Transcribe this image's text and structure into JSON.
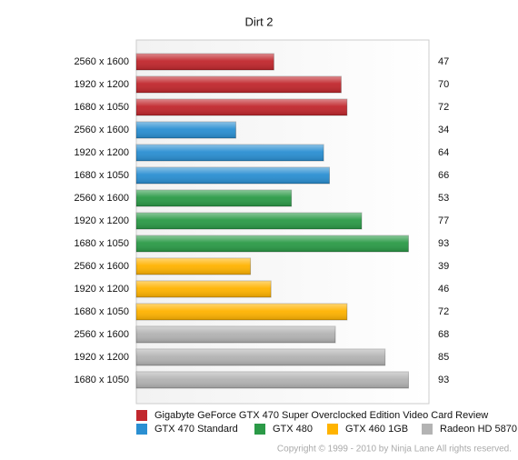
{
  "chart_data": {
    "type": "bar",
    "orientation": "horizontal",
    "title": "Dirt 2",
    "categories": [
      "2560 x 1600",
      "1920 x 1200",
      "1680 x 1050",
      "2560 x 1600",
      "1920 x 1200",
      "1680 x 1050",
      "2560 x 1600",
      "1920 x 1200",
      "1680 x 1050",
      "2560 x 1600",
      "1920 x 1200",
      "1680 x 1050",
      "2560 x 1600",
      "1920 x 1200",
      "1680 x 1050"
    ],
    "series": [
      {
        "name": "Gigabyte GeForce GTX 470 Super Overclocked Edition Video Card Review",
        "color": "#c1272d",
        "values": [
          47,
          70,
          72,
          null,
          null,
          null,
          null,
          null,
          null,
          null,
          null,
          null,
          null,
          null,
          null
        ]
      },
      {
        "name": "GTX 470 Standard",
        "color": "#2a8fd2",
        "values": [
          null,
          null,
          null,
          34,
          64,
          66,
          null,
          null,
          null,
          null,
          null,
          null,
          null,
          null,
          null
        ]
      },
      {
        "name": "GTX 480",
        "color": "#2b9a47",
        "values": [
          null,
          null,
          null,
          null,
          null,
          null,
          53,
          77,
          93,
          null,
          null,
          null,
          null,
          null,
          null
        ]
      },
      {
        "name": "GTX 460 1GB",
        "color": "#ffb300",
        "values": [
          null,
          null,
          null,
          null,
          null,
          null,
          null,
          null,
          null,
          39,
          46,
          72,
          null,
          null,
          null
        ]
      },
      {
        "name": "Radeon HD 5870",
        "color": "#b3b3b3",
        "values": [
          null,
          null,
          null,
          null,
          null,
          null,
          null,
          null,
          null,
          null,
          null,
          null,
          68,
          85,
          93
        ]
      }
    ],
    "xlim": [
      0,
      100
    ],
    "footer": "Copyright © 1999 - 2010 by Ninja Lane All rights reserved."
  }
}
